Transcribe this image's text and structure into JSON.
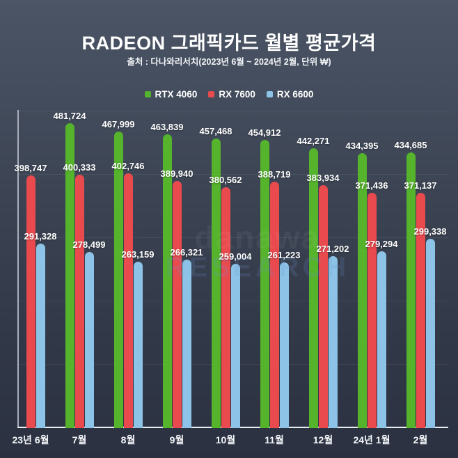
{
  "header": {
    "title": "RADEON 그래픽카드 월별 평균가격",
    "subtitle": "출처 : 다나와리서치(2023년 6월 ~ 2024년 2월, 단위 ₩)"
  },
  "watermark": {
    "line1": "danawa",
    "line2": "RESEARCH"
  },
  "colors": {
    "background_top": "#4b5565",
    "background_bottom": "#2b3140",
    "axis_bottom": "#e9ecf1",
    "axis_left": "#a9b0bc",
    "grid": "rgba(255,255,255,0.07)",
    "label_text": "#ffffff"
  },
  "chart_data": {
    "type": "bar",
    "title": "RADEON 그래픽카드 월별 평균가격",
    "subtitle": "출처 : 다나와리서치(2023년 6월 ~ 2024년 2월, 단위 ₩)",
    "categories": [
      "23년 6월",
      "7월",
      "8월",
      "9월",
      "10월",
      "11월",
      "12월",
      "24년 1월",
      "2월"
    ],
    "series": [
      {
        "name": "RTX 4060",
        "color": "#55b32c",
        "values": [
          null,
          481724,
          467999,
          463839,
          457468,
          454912,
          442271,
          434395,
          434685
        ]
      },
      {
        "name": "RX 7600",
        "color": "#e94a4d",
        "values": [
          398747,
          400333,
          402746,
          389940,
          380562,
          388719,
          383934,
          371436,
          371137
        ]
      },
      {
        "name": "RX 6600",
        "color": "#8cc3e6",
        "values": [
          291328,
          278499,
          263159,
          266321,
          259004,
          261223,
          271202,
          279294,
          299338
        ]
      }
    ],
    "xlabel": "",
    "ylabel": "",
    "ylim": [
      0,
      500000
    ],
    "grid_step": 100000,
    "grid": true,
    "legend_position": "top",
    "value_labels": true,
    "unit": "₩"
  }
}
